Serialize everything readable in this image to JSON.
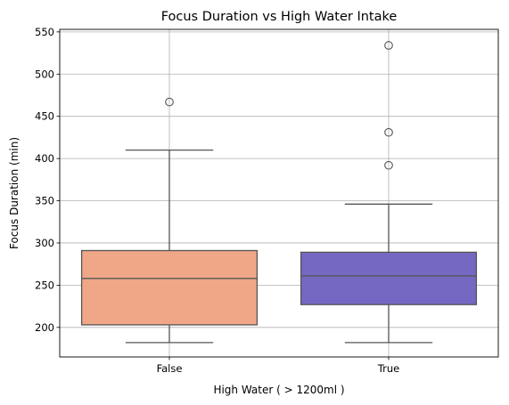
{
  "chart_data": {
    "type": "box",
    "title": "Focus Duration vs High Water Intake",
    "xlabel": "High Water ( > 1200ml )",
    "ylabel": "Focus Duration (min)",
    "ylim": [
      165,
      553
    ],
    "yticks": [
      200,
      250,
      300,
      350,
      400,
      450,
      500,
      550
    ],
    "grid": true,
    "categories": [
      "False",
      "True"
    ],
    "boxes": [
      {
        "category": "False",
        "color": "#F0A787",
        "whisker_low": 182,
        "q1": 203,
        "median": 258,
        "q3": 291,
        "whisker_high": 410,
        "outliers": [
          467
        ]
      },
      {
        "category": "True",
        "color": "#7568C3",
        "whisker_low": 182,
        "q1": 227,
        "median": 261,
        "q3": 289,
        "whisker_high": 346,
        "outliers": [
          392,
          431,
          534
        ]
      }
    ]
  }
}
